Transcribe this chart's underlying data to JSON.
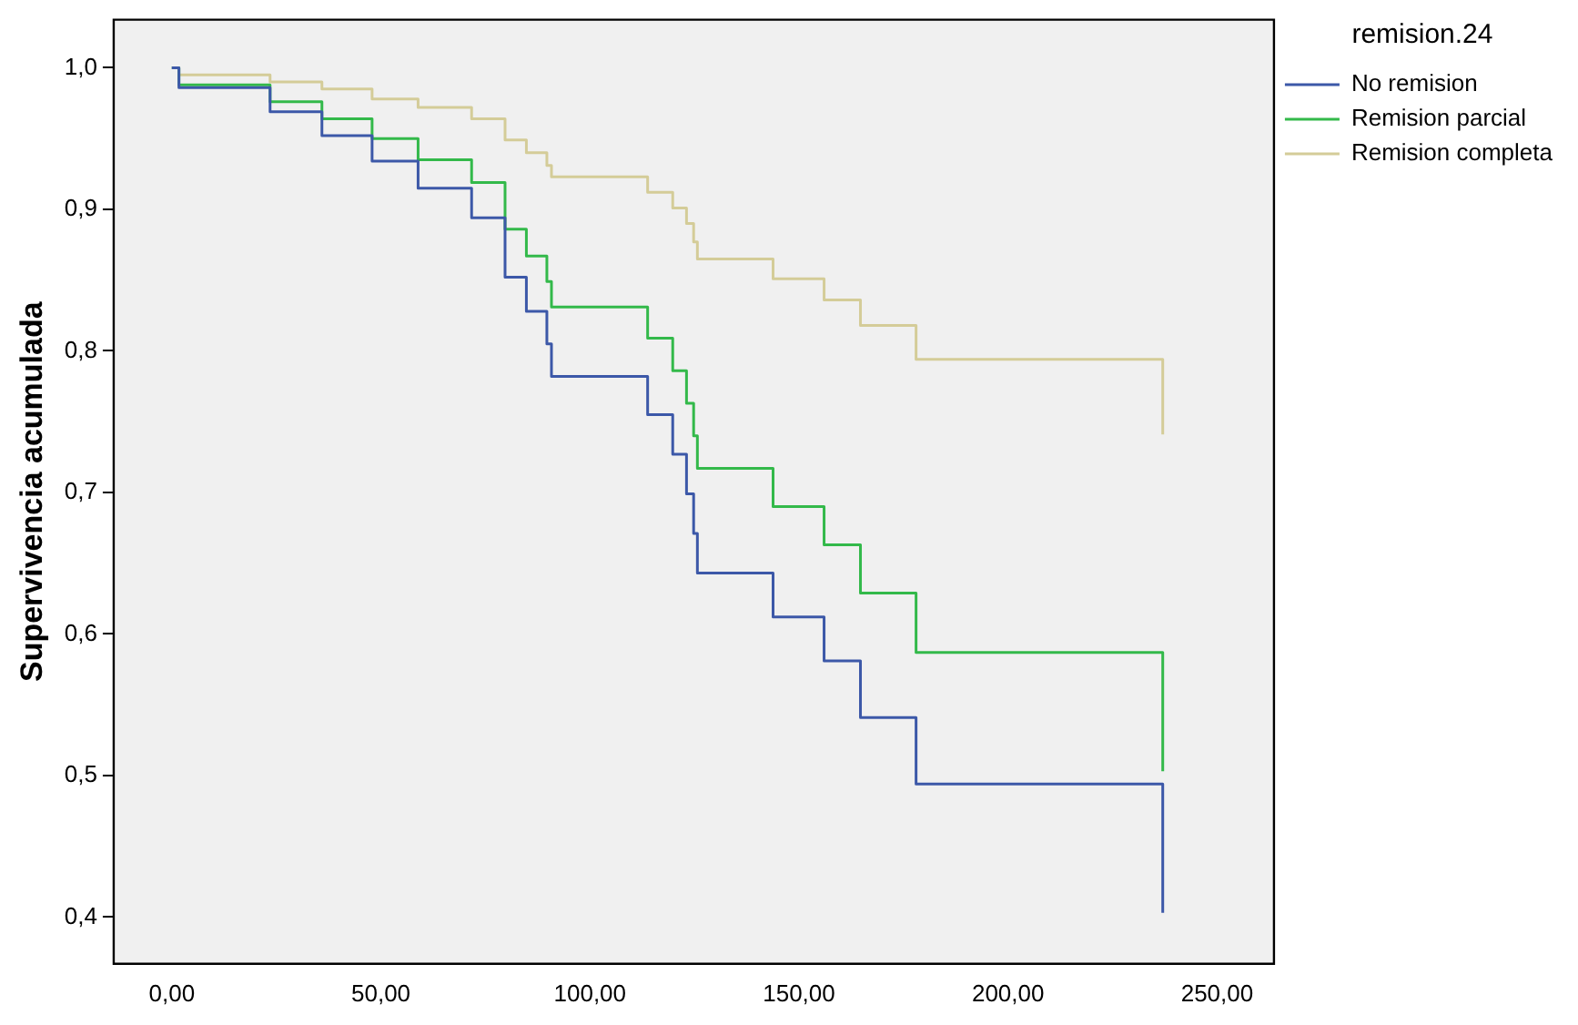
{
  "chart_data": {
    "type": "step",
    "ylabel": "Supervivencia acumulada",
    "legend_title": "remision.24",
    "legend": "top right",
    "grid": false,
    "marker": "none",
    "xlim": [
      -13.9,
      263.6
    ],
    "ylim": [
      0.367,
      1.034
    ],
    "xticks": [
      {
        "value": 0,
        "label": "0,00"
      },
      {
        "value": 50,
        "label": "50,00"
      },
      {
        "value": 100,
        "label": "100,00"
      },
      {
        "value": 150,
        "label": "150,00"
      },
      {
        "value": 200,
        "label": "200,00"
      },
      {
        "value": 250,
        "label": "250,00"
      }
    ],
    "yticks": [
      {
        "value": 0.4,
        "label": "0,4"
      },
      {
        "value": 0.5,
        "label": "0,5"
      },
      {
        "value": 0.6,
        "label": "0,6"
      },
      {
        "value": 0.7,
        "label": "0,7"
      },
      {
        "value": 0.8,
        "label": "0,8"
      },
      {
        "value": 0.9,
        "label": "0,9"
      },
      {
        "value": 1.0,
        "label": "1,0"
      }
    ],
    "x": [
      0,
      1.7,
      23.5,
      35.9,
      47.9,
      58.9,
      71.7,
      79.7,
      84.8,
      89.7,
      90.8,
      113.8,
      119.8,
      123.1,
      124.8,
      125.7,
      143.8,
      156,
      164.7,
      178,
      237
    ],
    "series": [
      {
        "name": "No remision",
        "color": "#3c58a8",
        "values": [
          1.0,
          0.986,
          0.969,
          0.952,
          0.934,
          0.915,
          0.894,
          0.852,
          0.828,
          0.805,
          0.782,
          0.755,
          0.727,
          0.699,
          0.671,
          0.643,
          0.612,
          0.581,
          0.541,
          0.494,
          0.403
        ]
      },
      {
        "name": "Remision parcial",
        "color": "#33b94a",
        "values": [
          1.0,
          0.988,
          0.976,
          0.964,
          0.95,
          0.935,
          0.919,
          0.886,
          0.867,
          0.849,
          0.831,
          0.809,
          0.786,
          0.763,
          0.74,
          0.717,
          0.69,
          0.663,
          0.629,
          0.587,
          0.503
        ]
      },
      {
        "name": "Remision completa",
        "color": "#d4cc98",
        "values": [
          1.0,
          0.995,
          0.99,
          0.985,
          0.978,
          0.972,
          0.964,
          0.949,
          0.94,
          0.931,
          0.923,
          0.912,
          0.901,
          0.89,
          0.877,
          0.865,
          0.851,
          0.836,
          0.818,
          0.794,
          0.741
        ]
      }
    ]
  }
}
